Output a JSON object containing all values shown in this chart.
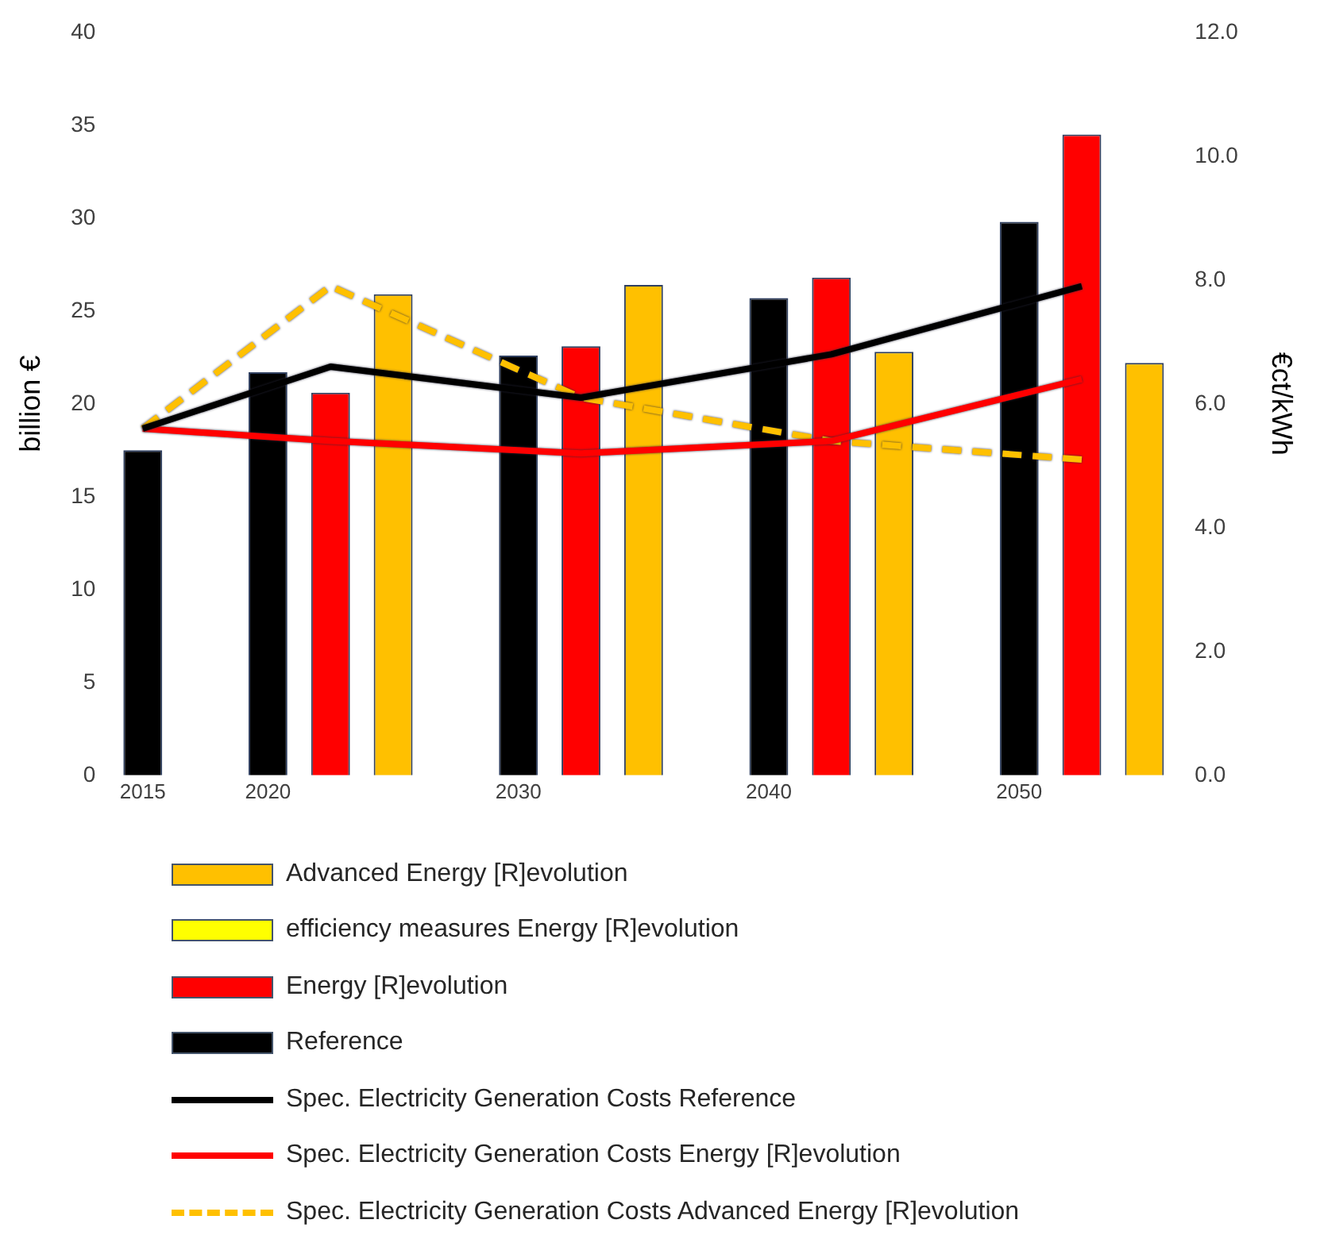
{
  "chart_data": {
    "type": "bar",
    "ylabel": "billion €",
    "y2label": "€ct/kWh",
    "categories": [
      "2015",
      null,
      "2020",
      null,
      null,
      null,
      "2030",
      null,
      null,
      null,
      "2040",
      null,
      null,
      null,
      "2050",
      null,
      null
    ],
    "series": [
      {
        "name": "Advanced Energy [R]evolution",
        "color": "#ffc000",
        "values": [
          null,
          null,
          null,
          null,
          25.9,
          null,
          null,
          null,
          26.4,
          null,
          null,
          null,
          22.8,
          null,
          null,
          null,
          22.2
        ]
      },
      {
        "name": "efficiency measures  Energy [R]evolution",
        "color": "#ffff00",
        "values": [
          null,
          null,
          null,
          null,
          null,
          null,
          null,
          null,
          null,
          null,
          null,
          null,
          null,
          null,
          null,
          null,
          null
        ]
      },
      {
        "name": "Energy [R]evolution",
        "color": "#ff0000",
        "values": [
          null,
          null,
          null,
          20.6,
          null,
          null,
          null,
          23.1,
          null,
          null,
          null,
          26.8,
          null,
          null,
          null,
          34.5,
          null
        ]
      },
      {
        "name": "Reference",
        "color": "#000000",
        "values": [
          17.5,
          null,
          21.7,
          null,
          null,
          null,
          22.6,
          null,
          null,
          null,
          25.7,
          null,
          null,
          null,
          29.8,
          null,
          null
        ]
      },
      {
        "name": "Spec. Electricity Generation Costs   Reference",
        "type": "line",
        "axis": "y2",
        "color": "#000000",
        "line_style": "solid",
        "values": [
          5.6,
          null,
          null,
          6.6,
          null,
          null,
          null,
          6.1,
          null,
          null,
          null,
          6.8,
          null,
          null,
          null,
          7.9,
          null
        ]
      },
      {
        "name": "Spec. Electricity Generation Costs   Energy [R]evolution",
        "type": "line",
        "axis": "y2",
        "color": "#ff0000",
        "line_style": "solid",
        "values": [
          5.6,
          null,
          null,
          5.4,
          null,
          null,
          null,
          5.2,
          null,
          null,
          null,
          5.4,
          null,
          null,
          null,
          6.4,
          null
        ]
      },
      {
        "name": "Spec. Electricity Generation Costs   Advanced Energy [R]evolution",
        "type": "line",
        "axis": "y2",
        "color": "#ffc000",
        "line_style": "dashed",
        "values": [
          5.6,
          null,
          null,
          7.9,
          null,
          null,
          null,
          6.1,
          null,
          null,
          null,
          5.4,
          null,
          null,
          null,
          5.1,
          null
        ]
      }
    ],
    "ylim": [
      0,
      40
    ],
    "yticks": [
      0,
      5,
      10,
      15,
      20,
      25,
      30,
      35,
      40
    ],
    "y2lim": [
      0,
      12
    ],
    "y2ticks": [
      {
        "value": 0,
        "label": "0.0"
      },
      {
        "value": 2,
        "label": "2.0"
      },
      {
        "value": 4,
        "label": "4.0"
      },
      {
        "value": 6,
        "label": "6.0"
      },
      {
        "value": 8,
        "label": "8.0"
      },
      {
        "value": 10,
        "label": "10.0"
      },
      {
        "value": 12,
        "label": "12.0"
      }
    ],
    "grid": false,
    "legend": "bottom",
    "marker": "none"
  }
}
